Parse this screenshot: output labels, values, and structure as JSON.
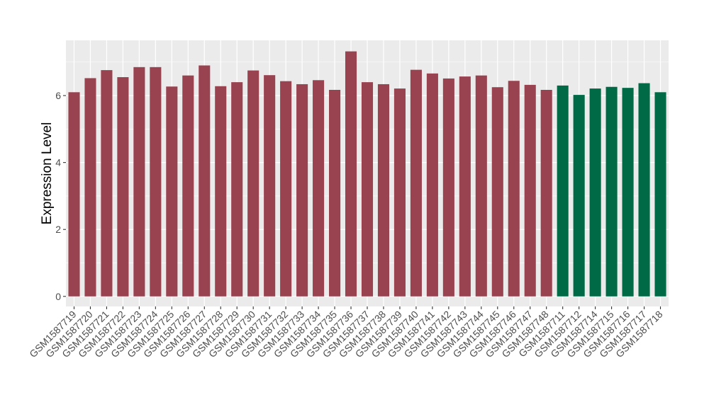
{
  "chart_data": {
    "type": "bar",
    "ylabel": "Expression Level",
    "xlabel": "",
    "title": "",
    "ylim": [
      -0.3,
      7.65
    ],
    "yticks": [
      0,
      2,
      4,
      6
    ],
    "grid": true,
    "background": "#ebebeb",
    "series_colors": {
      "group_a": "#994350",
      "group_b": "#006a47"
    },
    "categories": [
      "GSM1587719",
      "GSM1587720",
      "GSM1587721",
      "GSM1587722",
      "GSM1587723",
      "GSM1587724",
      "GSM1587725",
      "GSM1587726",
      "GSM1587727",
      "GSM1587728",
      "GSM1587729",
      "GSM1587730",
      "GSM1587731",
      "GSM1587732",
      "GSM1587733",
      "GSM1587734",
      "GSM1587735",
      "GSM1587736",
      "GSM1587737",
      "GSM1587738",
      "GSM1587739",
      "GSM1587740",
      "GSM1587741",
      "GSM1587742",
      "GSM1587743",
      "GSM1587744",
      "GSM1587745",
      "GSM1587746",
      "GSM1587747",
      "GSM1587748",
      "GSM1587711",
      "GSM1587712",
      "GSM1587714",
      "GSM1587715",
      "GSM1587716",
      "GSM1587717",
      "GSM1587718"
    ],
    "values": [
      6.1,
      6.52,
      6.76,
      6.55,
      6.85,
      6.85,
      6.27,
      6.6,
      6.9,
      6.28,
      6.4,
      6.75,
      6.61,
      6.43,
      6.34,
      6.46,
      6.17,
      7.32,
      6.4,
      6.34,
      6.21,
      6.77,
      6.66,
      6.51,
      6.57,
      6.6,
      6.25,
      6.44,
      6.32,
      6.17,
      6.3,
      6.02,
      6.21,
      6.26,
      6.23,
      6.37,
      6.1
    ],
    "groups": [
      "group_a",
      "group_a",
      "group_a",
      "group_a",
      "group_a",
      "group_a",
      "group_a",
      "group_a",
      "group_a",
      "group_a",
      "group_a",
      "group_a",
      "group_a",
      "group_a",
      "group_a",
      "group_a",
      "group_a",
      "group_a",
      "group_a",
      "group_a",
      "group_a",
      "group_a",
      "group_a",
      "group_a",
      "group_a",
      "group_a",
      "group_a",
      "group_a",
      "group_a",
      "group_a",
      "group_b",
      "group_b",
      "group_b",
      "group_b",
      "group_b",
      "group_b",
      "group_b"
    ]
  }
}
